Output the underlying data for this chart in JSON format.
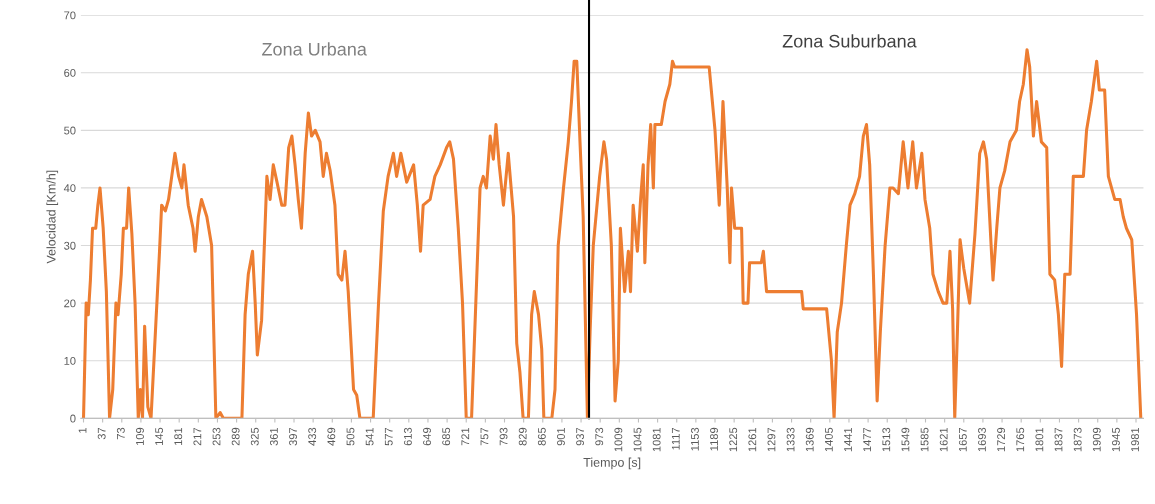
{
  "chart_data": {
    "type": "line",
    "xlabel": "Tiempo [s]",
    "ylabel": "Velocidad [Km/h]",
    "annotations": [
      "Zona Urbana",
      "Zona Suburbana"
    ],
    "x": [
      1,
      6,
      10,
      14,
      18,
      24,
      28,
      32,
      38,
      44,
      50,
      56,
      62,
      66,
      72,
      76,
      82,
      86,
      92,
      98,
      104,
      108,
      112,
      116,
      122,
      128,
      144,
      148,
      155,
      161,
      167,
      173,
      180,
      186,
      190,
      198,
      207,
      211,
      217,
      223,
      233,
      242,
      250,
      258,
      264,
      299,
      305,
      311,
      319,
      324,
      328,
      336,
      346,
      352,
      358,
      365,
      374,
      380,
      387,
      393,
      399,
      405,
      411,
      418,
      424,
      430,
      437,
      446,
      452,
      458,
      465,
      474,
      480,
      487,
      493,
      499,
      509,
      515,
      521,
      546,
      556,
      565,
      574,
      584,
      590,
      598,
      609,
      622,
      629,
      635,
      640,
      653,
      662,
      672,
      684,
      690,
      697,
      706,
      714,
      721,
      731,
      739,
      747,
      753,
      759,
      766,
      772,
      777,
      783,
      791,
      800,
      810,
      816,
      822,
      828,
      838,
      844,
      849,
      857,
      863,
      867,
      882,
      888,
      894,
      904,
      913,
      919,
      924,
      929,
      935,
      941,
      949,
      954,
      960,
      972,
      980,
      985,
      994,
      1001,
      1007,
      1011,
      1019,
      1026,
      1030,
      1035,
      1043,
      1049,
      1054,
      1057,
      1063,
      1068,
      1073,
      1076,
      1088,
      1095,
      1104,
      1109,
      1113,
      1178,
      1189,
      1197,
      1204,
      1212,
      1217,
      1220,
      1226,
      1239,
      1242,
      1251,
      1254,
      1276,
      1280,
      1286,
      1352,
      1355,
      1399,
      1408,
      1413,
      1419,
      1427,
      1436,
      1443,
      1452,
      1461,
      1468,
      1474,
      1480,
      1487,
      1494,
      1500,
      1509,
      1518,
      1524,
      1534,
      1543,
      1552,
      1561,
      1568,
      1578,
      1584,
      1593,
      1599,
      1609,
      1618,
      1625,
      1631,
      1636,
      1640,
      1645,
      1650,
      1657,
      1668,
      1678,
      1687,
      1694,
      1700,
      1709,
      1712,
      1719,
      1725,
      1734,
      1744,
      1756,
      1762,
      1769,
      1776,
      1781,
      1788,
      1794,
      1803,
      1813,
      1819,
      1828,
      1835,
      1841,
      1847,
      1857,
      1863,
      1882,
      1888,
      1897,
      1907,
      1912,
      1922,
      1929,
      1941,
      1951,
      1957,
      1963,
      1973,
      1982,
      1990
    ],
    "series": [
      {
        "color": "#ed7d31",
        "values": [
          0,
          20,
          18,
          24,
          33,
          33,
          37,
          40,
          33,
          22,
          0,
          5,
          20,
          18,
          25,
          33,
          33,
          40,
          32,
          20,
          0,
          5,
          0,
          16,
          2,
          0,
          29,
          37,
          36,
          38,
          42,
          46,
          42,
          40,
          44,
          37,
          33,
          29,
          35,
          38,
          35,
          30,
          0,
          1,
          0,
          0,
          18,
          25,
          29,
          20,
          11,
          17,
          42,
          38,
          44,
          41,
          37,
          37,
          47,
          49,
          44,
          38,
          33,
          46,
          53,
          49,
          50,
          48,
          42,
          46,
          43,
          37,
          25,
          24,
          29,
          22,
          5,
          4,
          0,
          0,
          20,
          36,
          42,
          46,
          42,
          46,
          41,
          44,
          37,
          29,
          37,
          38,
          42,
          44,
          47,
          48,
          45,
          33,
          20,
          0,
          0,
          20,
          40,
          42,
          40,
          49,
          45,
          51,
          44,
          37,
          46,
          35,
          13,
          8,
          0,
          0,
          18,
          22,
          18,
          12,
          0,
          0,
          5,
          30,
          40,
          48,
          55,
          62,
          62,
          48,
          35,
          0,
          15,
          30,
          42,
          48,
          45,
          30,
          3,
          10,
          33,
          22,
          29,
          22,
          37,
          29,
          38,
          44,
          27,
          44,
          51,
          40,
          51,
          51,
          55,
          58,
          62,
          61,
          61,
          50,
          37,
          55,
          40,
          27,
          40,
          33,
          33,
          20,
          20,
          27,
          27,
          29,
          22,
          22,
          19,
          19,
          10,
          0,
          15,
          20,
          30,
          37,
          39,
          42,
          49,
          51,
          44,
          25,
          3,
          15,
          30,
          40,
          40,
          39,
          48,
          40,
          48,
          40,
          46,
          38,
          33,
          25,
          22,
          20,
          20,
          29,
          19,
          0,
          15,
          31,
          26,
          20,
          32,
          46,
          48,
          45,
          29,
          24,
          33,
          40,
          43,
          48,
          50,
          55,
          58,
          64,
          61,
          49,
          55,
          48,
          47,
          25,
          24,
          18,
          9,
          25,
          25,
          42,
          42,
          50,
          55,
          62,
          57,
          57,
          42,
          38,
          38,
          35,
          33,
          31,
          18,
          0
        ]
      }
    ],
    "xlim": [
      -4,
      1995
    ],
    "xticks": [
      1,
      37,
      73,
      109,
      145,
      181,
      217,
      253,
      289,
      325,
      361,
      397,
      433,
      469,
      505,
      541,
      577,
      613,
      649,
      685,
      721,
      757,
      793,
      829,
      865,
      901,
      937,
      973,
      1009,
      1045,
      1081,
      1117,
      1153,
      1189,
      1225,
      1261,
      1297,
      1333,
      1369,
      1405,
      1441,
      1477,
      1513,
      1549,
      1585,
      1621,
      1657,
      1693,
      1729,
      1765,
      1801,
      1837,
      1873,
      1909,
      1945,
      1981
    ],
    "ylim": [
      0,
      70
    ],
    "yticks": [
      0,
      10,
      20,
      30,
      40,
      50,
      60,
      70
    ],
    "grid": "y",
    "marker": "none",
    "line_style": "solid",
    "ref_lines": [
      {
        "axis": "x",
        "value": 952,
        "color": "#000000",
        "line_style": "solid"
      }
    ]
  }
}
